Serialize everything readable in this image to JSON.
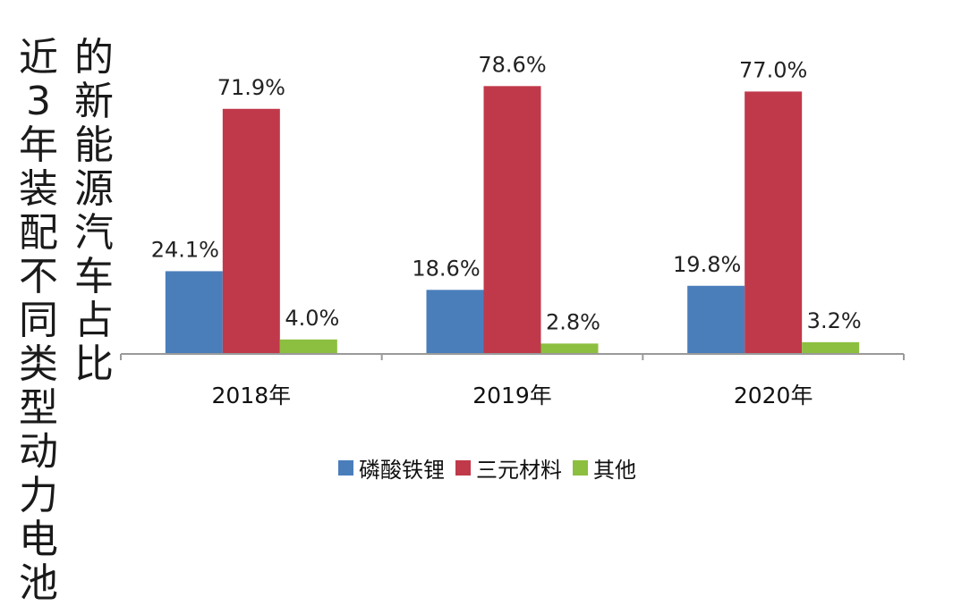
{
  "chart_data": {
    "type": "bar",
    "ylabel_lines": [
      "近3年装配不同类型动力电池",
      "的新能源汽车占比"
    ],
    "categories": [
      "2018年",
      "2019年",
      "2020年"
    ],
    "series": [
      {
        "name": "磷酸铁锂",
        "color": "#4a7ebb",
        "values": [
          24.1,
          18.6,
          19.8
        ],
        "labels": [
          "24.1%",
          "18.6%",
          "19.8%"
        ]
      },
      {
        "name": "三元材料",
        "color": "#c0394a",
        "values": [
          71.9,
          78.6,
          77.0
        ],
        "labels": [
          "71.9%",
          "78.6%",
          "77.0%"
        ]
      },
      {
        "name": "其他",
        "color": "#8cbf3f",
        "values": [
          4.0,
          2.8,
          3.2
        ],
        "labels": [
          "4.0%",
          "2.8%",
          "3.2%"
        ]
      }
    ],
    "ylim": [
      0,
      100
    ],
    "grid": false,
    "legend_position": "bottom"
  }
}
